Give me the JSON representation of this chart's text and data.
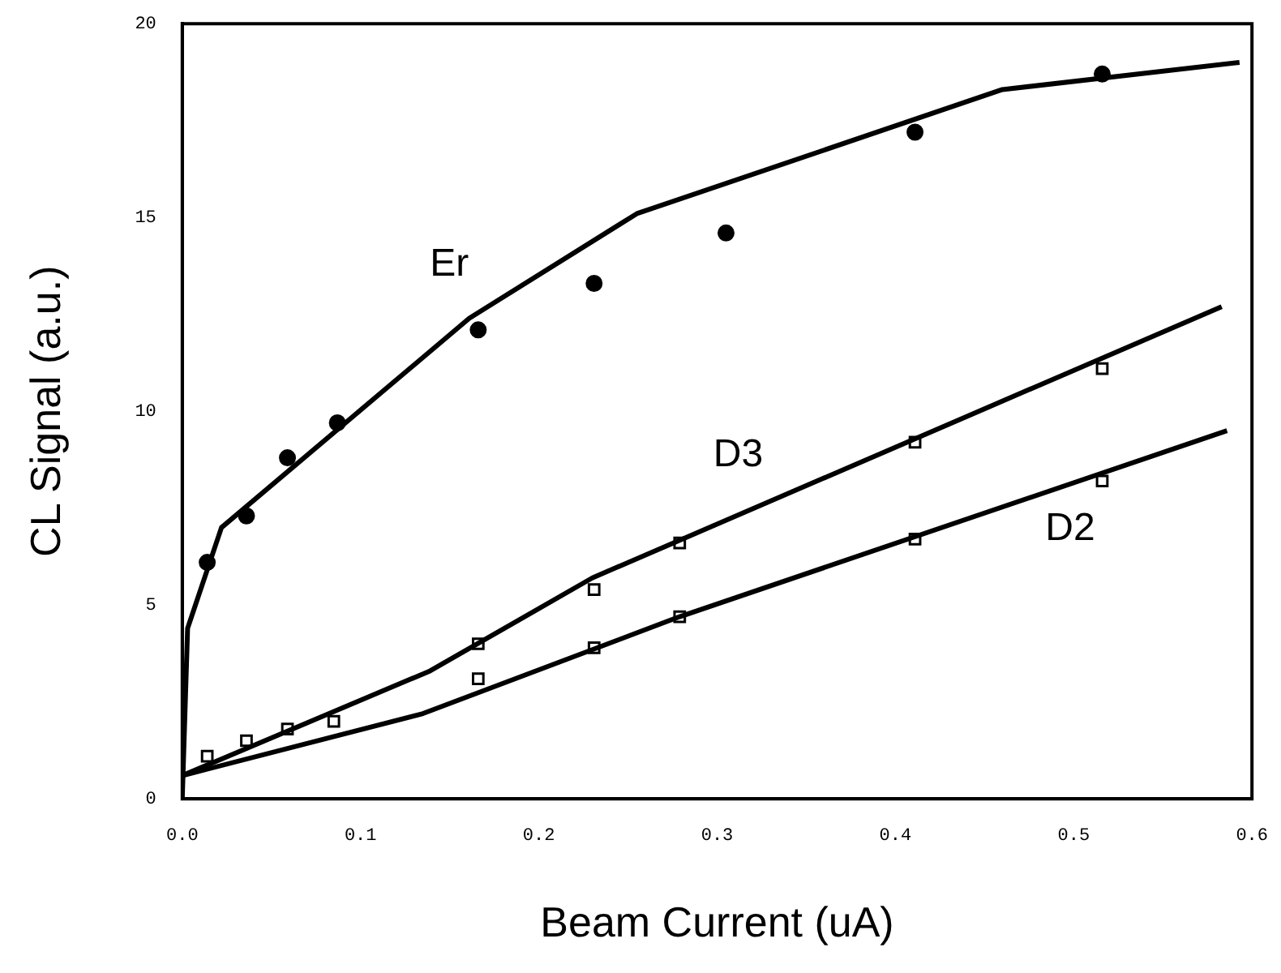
{
  "chart_data": {
    "type": "line",
    "xlabel": "Beam Current (uA)",
    "ylabel": "CL Signal (a.u.)",
    "xlim": [
      0,
      0.6
    ],
    "xticks": [
      {
        "value": 0,
        "label": "0.0"
      },
      0.1,
      0.2,
      0.3,
      0.4,
      0.5,
      0.6
    ],
    "ylim": [
      0,
      20
    ],
    "yticks": [
      0,
      5,
      10,
      15,
      20
    ],
    "grid": false,
    "legend": false,
    "series": [
      {
        "name": "Er",
        "color": "#000000",
        "marker": "none",
        "x": [
          0,
          0.003,
          0.022,
          0.161,
          0.255,
          0.46,
          0.593
        ],
        "values": [
          0,
          4.4,
          7.0,
          12.4,
          15.1,
          18.3,
          19.0
        ]
      },
      {
        "type": "scatter",
        "color": "#000000",
        "marker": "circle",
        "x": [
          0.014,
          0.036,
          0.059,
          0.087,
          0.166,
          0.231,
          0.305,
          0.411,
          0.516
        ],
        "values": [
          6.1,
          7.3,
          8.8,
          9.7,
          12.1,
          13.3,
          14.6,
          17.2,
          18.7
        ]
      },
      {
        "name": "D3",
        "color": "#000000",
        "marker": "none",
        "x": [
          0,
          0.139,
          0.23,
          0.583
        ],
        "values": [
          0.6,
          3.3,
          5.7,
          12.7
        ]
      },
      {
        "type": "scatter",
        "color": "#000000",
        "marker": "square",
        "x": [
          0.014,
          0.036,
          0.059,
          0.085,
          0.166,
          0.231,
          0.279,
          0.411,
          0.516
        ],
        "values": [
          1.1,
          1.5,
          1.8,
          2.0,
          4.0,
          5.4,
          6.6,
          9.2,
          11.1
        ]
      },
      {
        "name": "D2",
        "color": "#000000",
        "marker": "none",
        "x": [
          0,
          0.135,
          0.279,
          0.586
        ],
        "values": [
          0.6,
          2.2,
          4.7,
          9.5
        ]
      },
      {
        "type": "scatter",
        "color": "#000000",
        "marker": "square",
        "x": [
          0.166,
          0.231,
          0.279,
          0.411,
          0.516
        ],
        "values": [
          3.1,
          3.9,
          4.7,
          6.7,
          8.2
        ]
      }
    ]
  }
}
